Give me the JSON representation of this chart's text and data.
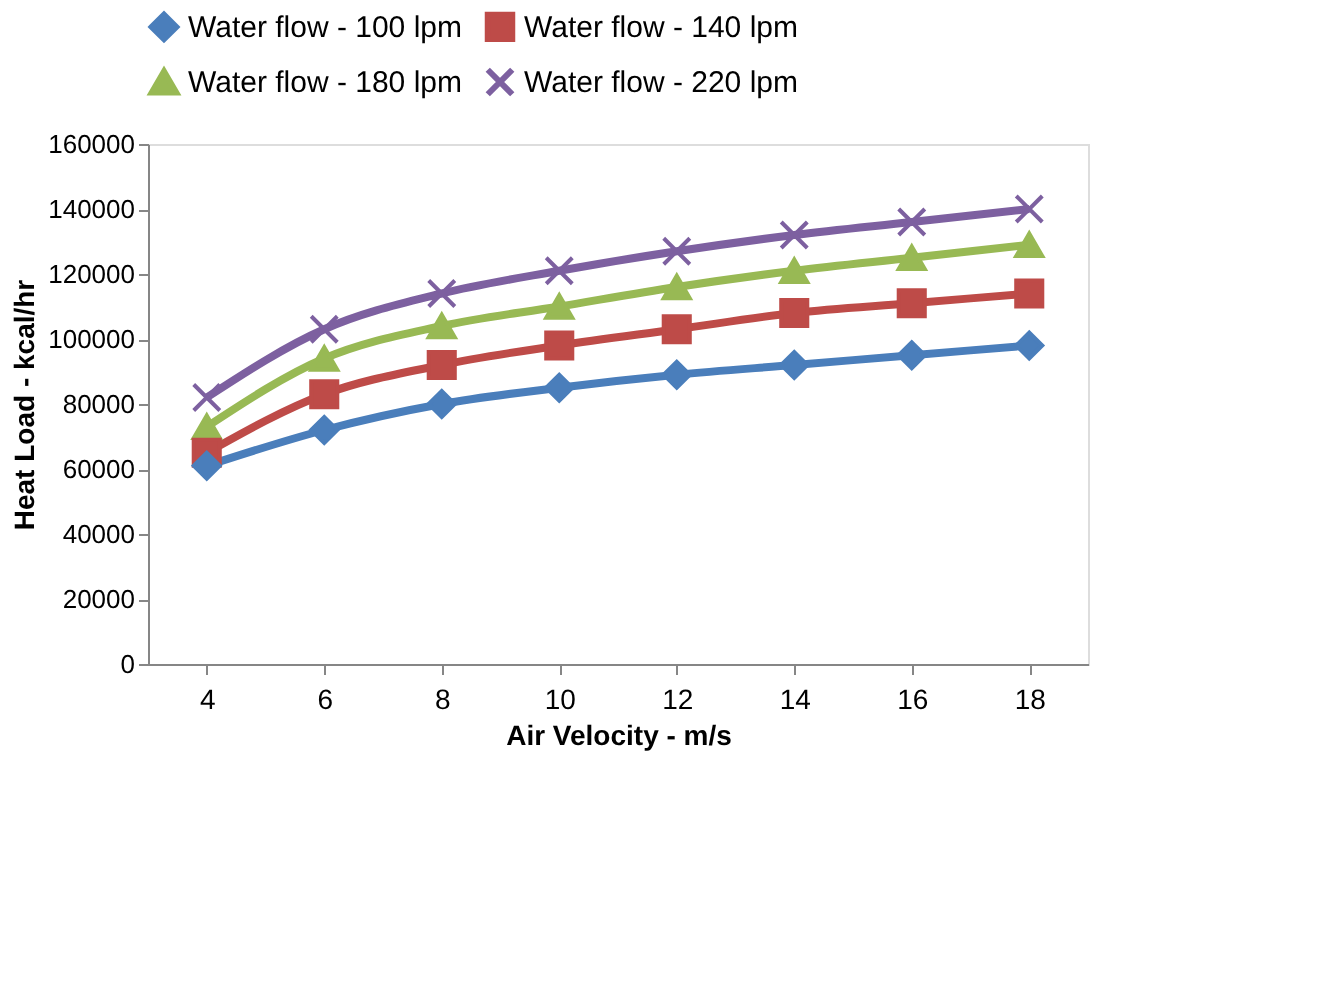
{
  "chart_data": {
    "type": "line",
    "xlabel": "Air Velocity - m/s",
    "ylabel": "Heat Load - kcal/hr",
    "categories": [
      "4",
      "6",
      "8",
      "10",
      "12",
      "14",
      "16",
      "18"
    ],
    "series": [
      {
        "name": "Water flow - 100 lpm",
        "color": "#4a7ebb",
        "marker": "diamond",
        "values": [
          61000,
          72000,
          80000,
          85000,
          89000,
          92000,
          95000,
          98000
        ]
      },
      {
        "name": "Water flow - 140 lpm",
        "color": "#be4b48",
        "marker": "square",
        "values": [
          65000,
          83000,
          92000,
          98000,
          103000,
          108000,
          111000,
          114000
        ]
      },
      {
        "name": "Water flow - 180 lpm",
        "color": "#98b954",
        "marker": "triangle",
        "values": [
          73000,
          94000,
          104000,
          110000,
          116000,
          121000,
          125000,
          129000
        ]
      },
      {
        "name": "Water flow - 220 lpm",
        "color": "#7d60a0",
        "marker": "cross",
        "values": [
          82000,
          103000,
          114000,
          121000,
          127000,
          132000,
          136000,
          140000
        ]
      }
    ],
    "ylim": [
      0,
      160000
    ],
    "yticks": [
      0,
      20000,
      40000,
      60000,
      80000,
      100000,
      120000,
      140000,
      160000
    ],
    "grid": false,
    "legend": "top",
    "line_style": "solid"
  }
}
